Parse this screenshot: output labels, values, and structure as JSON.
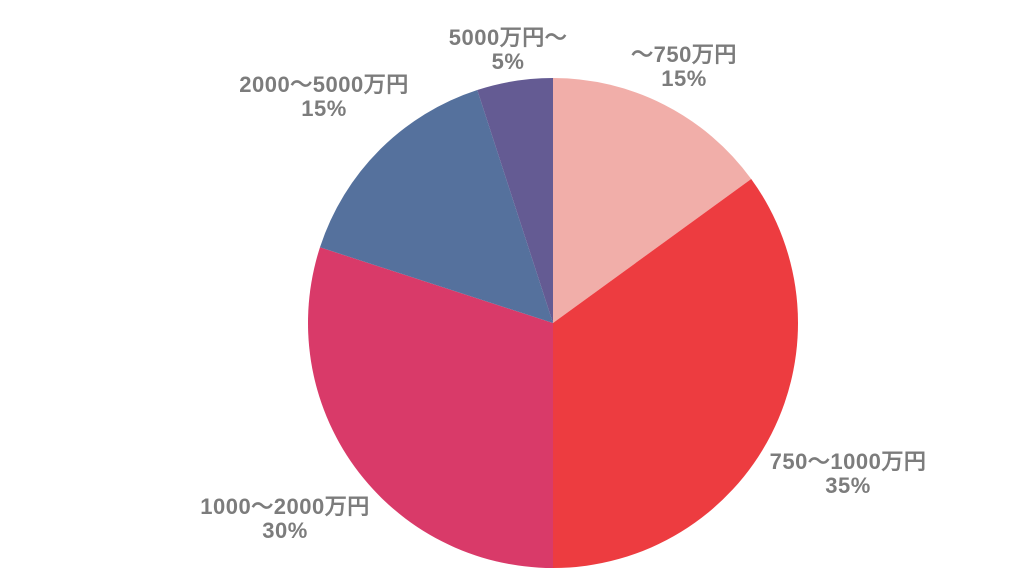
{
  "chart_data": {
    "type": "pie",
    "title": "",
    "legend_position": "none",
    "labels_layout": "outside",
    "start_angle_deg": 0,
    "direction": "clockwise",
    "label_color": "#7c7c7c",
    "background_color": "#ffffff",
    "slices": [
      {
        "label": "〜750万円",
        "value": 15,
        "percent_label": "15%",
        "color": "#f1aea9"
      },
      {
        "label": "750〜1000万円",
        "value": 35,
        "percent_label": "35%",
        "color": "#ed3c40"
      },
      {
        "label": "1000〜2000万円",
        "value": 30,
        "percent_label": "30%",
        "color": "#d93a69"
      },
      {
        "label": "2000〜5000万円",
        "value": 15,
        "percent_label": "15%",
        "color": "#55719d"
      },
      {
        "label": "5000万円〜",
        "value": 5,
        "percent_label": "5%",
        "color": "#645b93"
      }
    ]
  }
}
